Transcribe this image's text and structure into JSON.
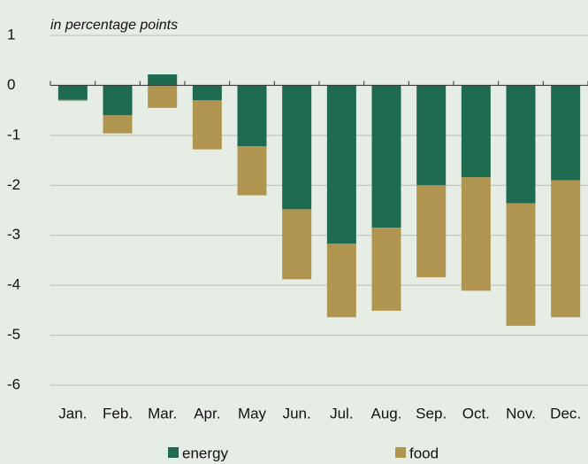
{
  "chart_data": {
    "type": "bar",
    "stacked": true,
    "subtitle": "in percentage points",
    "categories": [
      "Jan.",
      "Feb.",
      "Mar.",
      "Apr.",
      "May",
      "Jun.",
      "Jul.",
      "Aug.",
      "Sep.",
      "Oct.",
      "Nov.",
      "Dec."
    ],
    "series": [
      {
        "name": "energy",
        "color": "#1e6b52",
        "values": [
          -0.29,
          -0.6,
          0.22,
          -0.3,
          -1.22,
          -2.48,
          -3.17,
          -2.85,
          -2.0,
          -1.84,
          -2.36,
          -1.9
        ]
      },
      {
        "name": "food",
        "color": "#b09550",
        "values": [
          -0.02,
          -0.36,
          -0.45,
          -0.98,
          -0.98,
          -1.4,
          -1.47,
          -1.66,
          -1.84,
          -2.27,
          -2.45,
          -2.74
        ]
      }
    ],
    "ylim": [
      -6,
      1
    ],
    "yticks": [
      1,
      0,
      -1,
      -2,
      -3,
      -4,
      -5,
      -6
    ],
    "grid": true,
    "legend": "bottom"
  }
}
